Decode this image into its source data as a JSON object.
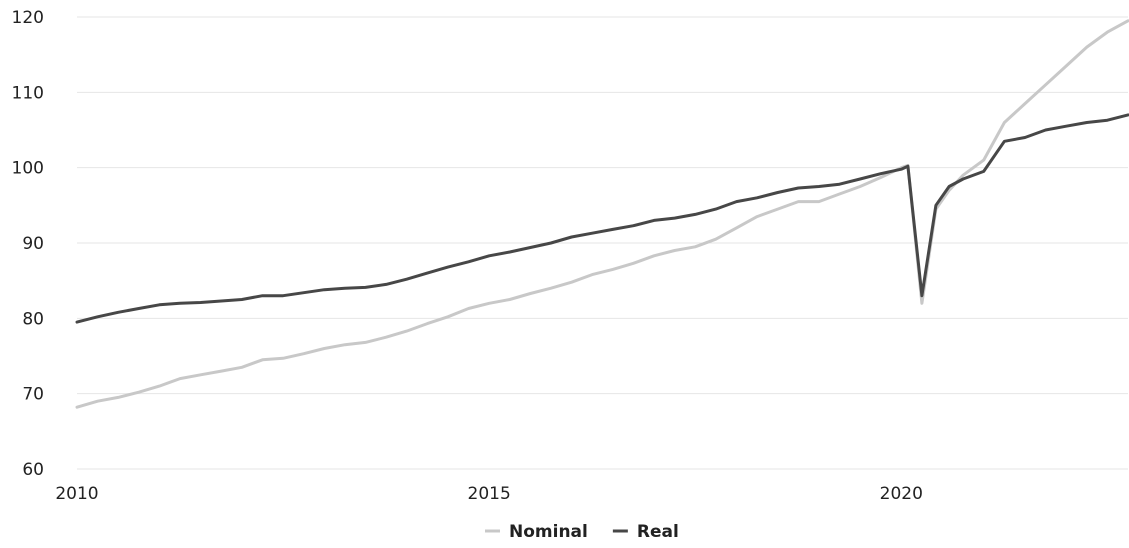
{
  "chart_data": {
    "type": "line",
    "title": "",
    "xlabel": "",
    "ylabel": "",
    "xlim": [
      2010,
      2022.75
    ],
    "ylim": [
      60,
      120
    ],
    "yticks": [
      60,
      70,
      80,
      90,
      100,
      110,
      120
    ],
    "xticks": [
      2010,
      2015,
      2020
    ],
    "grid": true,
    "legend_position": "bottom-center",
    "series": [
      {
        "name": "Nominal",
        "color": "#c8c8c8",
        "points": [
          [
            2010.0,
            68.2
          ],
          [
            2010.25,
            69.0
          ],
          [
            2010.5,
            69.5
          ],
          [
            2010.75,
            70.2
          ],
          [
            2011.0,
            71.0
          ],
          [
            2011.25,
            72.0
          ],
          [
            2011.5,
            72.5
          ],
          [
            2011.75,
            73.0
          ],
          [
            2012.0,
            73.5
          ],
          [
            2012.25,
            74.5
          ],
          [
            2012.5,
            74.7
          ],
          [
            2012.75,
            75.3
          ],
          [
            2013.0,
            76.0
          ],
          [
            2013.25,
            76.5
          ],
          [
            2013.5,
            76.8
          ],
          [
            2013.75,
            77.5
          ],
          [
            2014.0,
            78.3
          ],
          [
            2014.25,
            79.3
          ],
          [
            2014.5,
            80.2
          ],
          [
            2014.75,
            81.3
          ],
          [
            2015.0,
            82.0
          ],
          [
            2015.25,
            82.5
          ],
          [
            2015.5,
            83.3
          ],
          [
            2015.75,
            84.0
          ],
          [
            2016.0,
            84.8
          ],
          [
            2016.25,
            85.8
          ],
          [
            2016.5,
            86.5
          ],
          [
            2016.75,
            87.3
          ],
          [
            2017.0,
            88.3
          ],
          [
            2017.25,
            89.0
          ],
          [
            2017.5,
            89.5
          ],
          [
            2017.75,
            90.5
          ],
          [
            2018.0,
            92.0
          ],
          [
            2018.25,
            93.5
          ],
          [
            2018.5,
            94.5
          ],
          [
            2018.75,
            95.5
          ],
          [
            2019.0,
            95.5
          ],
          [
            2019.25,
            96.5
          ],
          [
            2019.5,
            97.5
          ],
          [
            2019.75,
            98.7
          ],
          [
            2020.0,
            100.0
          ],
          [
            2020.08,
            100.3
          ],
          [
            2020.25,
            82.0
          ],
          [
            2020.42,
            94.5
          ],
          [
            2020.58,
            97.0
          ],
          [
            2020.75,
            99.0
          ],
          [
            2021.0,
            101.0
          ],
          [
            2021.25,
            106.0
          ],
          [
            2021.5,
            108.5
          ],
          [
            2021.75,
            111.0
          ],
          [
            2022.0,
            113.5
          ],
          [
            2022.25,
            116.0
          ],
          [
            2022.5,
            118.0
          ],
          [
            2022.75,
            119.5
          ]
        ]
      },
      {
        "name": "Real",
        "color": "#474747",
        "points": [
          [
            2010.0,
            79.5
          ],
          [
            2010.25,
            80.2
          ],
          [
            2010.5,
            80.8
          ],
          [
            2010.75,
            81.3
          ],
          [
            2011.0,
            81.8
          ],
          [
            2011.25,
            82.0
          ],
          [
            2011.5,
            82.1
          ],
          [
            2011.75,
            82.3
          ],
          [
            2012.0,
            82.5
          ],
          [
            2012.25,
            83.0
          ],
          [
            2012.5,
            83.0
          ],
          [
            2012.75,
            83.4
          ],
          [
            2013.0,
            83.8
          ],
          [
            2013.25,
            84.0
          ],
          [
            2013.5,
            84.1
          ],
          [
            2013.75,
            84.5
          ],
          [
            2014.0,
            85.2
          ],
          [
            2014.25,
            86.0
          ],
          [
            2014.5,
            86.8
          ],
          [
            2014.75,
            87.5
          ],
          [
            2015.0,
            88.3
          ],
          [
            2015.25,
            88.8
          ],
          [
            2015.5,
            89.4
          ],
          [
            2015.75,
            90.0
          ],
          [
            2016.0,
            90.8
          ],
          [
            2016.25,
            91.3
          ],
          [
            2016.5,
            91.8
          ],
          [
            2016.75,
            92.3
          ],
          [
            2017.0,
            93.0
          ],
          [
            2017.25,
            93.3
          ],
          [
            2017.5,
            93.8
          ],
          [
            2017.75,
            94.5
          ],
          [
            2018.0,
            95.5
          ],
          [
            2018.25,
            96.0
          ],
          [
            2018.5,
            96.7
          ],
          [
            2018.75,
            97.3
          ],
          [
            2019.0,
            97.5
          ],
          [
            2019.25,
            97.8
          ],
          [
            2019.5,
            98.5
          ],
          [
            2019.75,
            99.2
          ],
          [
            2020.0,
            99.8
          ],
          [
            2020.08,
            100.2
          ],
          [
            2020.25,
            83.0
          ],
          [
            2020.42,
            95.0
          ],
          [
            2020.58,
            97.5
          ],
          [
            2020.75,
            98.5
          ],
          [
            2021.0,
            99.5
          ],
          [
            2021.25,
            103.5
          ],
          [
            2021.5,
            104.0
          ],
          [
            2021.75,
            105.0
          ],
          [
            2022.0,
            105.5
          ],
          [
            2022.25,
            106.0
          ],
          [
            2022.5,
            106.3
          ],
          [
            2022.75,
            107.0
          ]
        ]
      }
    ]
  }
}
